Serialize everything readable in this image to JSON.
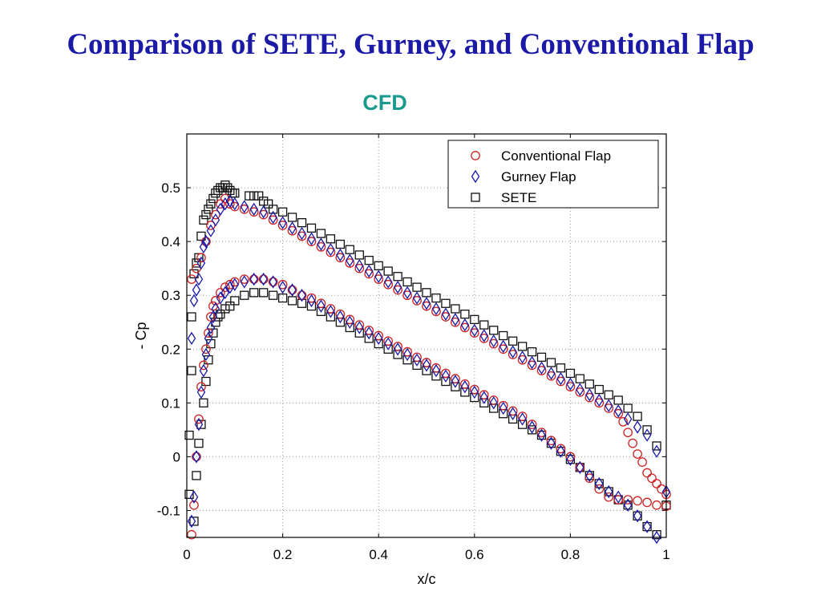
{
  "slide": {
    "title": "Comparison of SETE, Gurney, and Conventional Flap",
    "subtitle": "CFD"
  },
  "colors": {
    "title": "#1a1aa6",
    "subtitle": "#1a9a8e",
    "conventional_flap": "#cc2222",
    "gurney_flap": "#1a1aa8",
    "sete": "#111111"
  },
  "chart_data": {
    "type": "scatter",
    "title": "",
    "xlabel": "x/c",
    "ylabel": "- Cp",
    "xlim": [
      0,
      1
    ],
    "ylim": [
      -0.15,
      0.6
    ],
    "xticks": [
      "0",
      "0.2",
      "0.4",
      "0.6",
      "0.8",
      "1"
    ],
    "yticks": [
      "-0.1",
      "0",
      "0.1",
      "0.2",
      "0.3",
      "0.4",
      "0.5"
    ],
    "grid": true,
    "legend_position": "top-right",
    "series": [
      {
        "name": "Conventional Flap",
        "marker": "circle",
        "color": "#cc2222",
        "upper": {
          "x": [
            0.01,
            0.02,
            0.03,
            0.04,
            0.05,
            0.06,
            0.07,
            0.08,
            0.09,
            0.1,
            0.12,
            0.14,
            0.16,
            0.18,
            0.2,
            0.22,
            0.24,
            0.26,
            0.28,
            0.3,
            0.32,
            0.34,
            0.36,
            0.38,
            0.4,
            0.42,
            0.44,
            0.46,
            0.48,
            0.5,
            0.52,
            0.54,
            0.56,
            0.58,
            0.6,
            0.62,
            0.64,
            0.66,
            0.68,
            0.7,
            0.72,
            0.74,
            0.76,
            0.78,
            0.8,
            0.82,
            0.84,
            0.86,
            0.88,
            0.9,
            0.91,
            0.92,
            0.93,
            0.94,
            0.95,
            0.96,
            0.97,
            0.98,
            0.99,
            1.0
          ],
          "y": [
            0.33,
            0.35,
            0.37,
            0.4,
            0.43,
            0.45,
            0.47,
            0.48,
            0.47,
            0.465,
            0.46,
            0.455,
            0.45,
            0.44,
            0.43,
            0.42,
            0.41,
            0.4,
            0.39,
            0.38,
            0.37,
            0.36,
            0.35,
            0.34,
            0.33,
            0.32,
            0.31,
            0.3,
            0.29,
            0.28,
            0.27,
            0.26,
            0.25,
            0.24,
            0.23,
            0.22,
            0.21,
            0.2,
            0.19,
            0.18,
            0.17,
            0.16,
            0.15,
            0.14,
            0.13,
            0.12,
            0.11,
            0.1,
            0.09,
            0.08,
            0.065,
            0.045,
            0.025,
            0.005,
            -0.01,
            -0.03,
            -0.04,
            -0.05,
            -0.06,
            -0.07
          ]
        },
        "lower": {
          "x": [
            0.01,
            0.015,
            0.02,
            0.025,
            0.03,
            0.035,
            0.04,
            0.045,
            0.05,
            0.055,
            0.06,
            0.07,
            0.08,
            0.09,
            0.1,
            0.12,
            0.14,
            0.16,
            0.18,
            0.2,
            0.22,
            0.24,
            0.26,
            0.28,
            0.3,
            0.32,
            0.34,
            0.36,
            0.38,
            0.4,
            0.42,
            0.44,
            0.46,
            0.48,
            0.5,
            0.52,
            0.54,
            0.56,
            0.58,
            0.6,
            0.62,
            0.64,
            0.66,
            0.68,
            0.7,
            0.72,
            0.74,
            0.76,
            0.78,
            0.8,
            0.82,
            0.84,
            0.86,
            0.88,
            0.9,
            0.92,
            0.94,
            0.96,
            0.98,
            1.0
          ],
          "y": [
            -0.145,
            -0.09,
            0.0,
            0.07,
            0.13,
            0.17,
            0.2,
            0.23,
            0.26,
            0.28,
            0.29,
            0.305,
            0.315,
            0.32,
            0.325,
            0.33,
            0.33,
            0.33,
            0.325,
            0.32,
            0.31,
            0.3,
            0.295,
            0.285,
            0.275,
            0.265,
            0.255,
            0.245,
            0.235,
            0.225,
            0.215,
            0.205,
            0.195,
            0.185,
            0.175,
            0.165,
            0.155,
            0.145,
            0.135,
            0.125,
            0.115,
            0.105,
            0.095,
            0.085,
            0.075,
            0.06,
            0.045,
            0.03,
            0.015,
            0.0,
            -0.02,
            -0.04,
            -0.06,
            -0.075,
            -0.08,
            -0.08,
            -0.082,
            -0.085,
            -0.09,
            -0.092
          ]
        }
      },
      {
        "name": "Gurney Flap",
        "marker": "diamond",
        "color": "#1a1aa8",
        "upper": {
          "x": [
            0.01,
            0.015,
            0.02,
            0.025,
            0.03,
            0.035,
            0.04,
            0.05,
            0.06,
            0.07,
            0.08,
            0.09,
            0.1,
            0.12,
            0.14,
            0.16,
            0.18,
            0.2,
            0.22,
            0.24,
            0.26,
            0.28,
            0.3,
            0.32,
            0.34,
            0.36,
            0.38,
            0.4,
            0.42,
            0.44,
            0.46,
            0.48,
            0.5,
            0.52,
            0.54,
            0.56,
            0.58,
            0.6,
            0.62,
            0.64,
            0.66,
            0.68,
            0.7,
            0.72,
            0.74,
            0.76,
            0.78,
            0.8,
            0.82,
            0.84,
            0.86,
            0.88,
            0.9,
            0.92,
            0.94,
            0.96,
            0.98,
            1.0
          ],
          "y": [
            0.22,
            0.29,
            0.31,
            0.33,
            0.36,
            0.39,
            0.4,
            0.42,
            0.44,
            0.46,
            0.47,
            0.475,
            0.47,
            0.465,
            0.46,
            0.455,
            0.445,
            0.435,
            0.425,
            0.415,
            0.405,
            0.395,
            0.385,
            0.375,
            0.365,
            0.355,
            0.345,
            0.335,
            0.325,
            0.315,
            0.305,
            0.295,
            0.285,
            0.275,
            0.265,
            0.255,
            0.245,
            0.235,
            0.225,
            0.215,
            0.205,
            0.195,
            0.185,
            0.175,
            0.165,
            0.155,
            0.145,
            0.135,
            0.125,
            0.115,
            0.105,
            0.095,
            0.085,
            0.07,
            0.055,
            0.04,
            0.01,
            -0.065
          ]
        },
        "lower": {
          "x": [
            0.01,
            0.015,
            0.02,
            0.025,
            0.03,
            0.035,
            0.04,
            0.045,
            0.05,
            0.055,
            0.06,
            0.07,
            0.08,
            0.09,
            0.1,
            0.12,
            0.14,
            0.16,
            0.18,
            0.2,
            0.22,
            0.24,
            0.26,
            0.28,
            0.3,
            0.32,
            0.34,
            0.36,
            0.38,
            0.4,
            0.42,
            0.44,
            0.46,
            0.48,
            0.5,
            0.52,
            0.54,
            0.56,
            0.58,
            0.6,
            0.62,
            0.64,
            0.66,
            0.68,
            0.7,
            0.72,
            0.74,
            0.76,
            0.78,
            0.8,
            0.82,
            0.84,
            0.86,
            0.88,
            0.9,
            0.92,
            0.94,
            0.96,
            0.98
          ],
          "y": [
            -0.12,
            -0.075,
            0.0,
            0.06,
            0.12,
            0.16,
            0.19,
            0.22,
            0.24,
            0.26,
            0.275,
            0.295,
            0.305,
            0.315,
            0.32,
            0.325,
            0.33,
            0.33,
            0.325,
            0.315,
            0.31,
            0.3,
            0.29,
            0.28,
            0.27,
            0.26,
            0.25,
            0.24,
            0.23,
            0.22,
            0.21,
            0.2,
            0.19,
            0.18,
            0.17,
            0.16,
            0.15,
            0.14,
            0.13,
            0.12,
            0.11,
            0.1,
            0.09,
            0.08,
            0.07,
            0.055,
            0.04,
            0.025,
            0.01,
            -0.005,
            -0.02,
            -0.035,
            -0.05,
            -0.065,
            -0.075,
            -0.09,
            -0.11,
            -0.13,
            -0.15
          ]
        }
      },
      {
        "name": "SETE",
        "marker": "square",
        "color": "#111111",
        "upper": {
          "x": [
            0.005,
            0.01,
            0.015,
            0.02,
            0.025,
            0.03,
            0.035,
            0.04,
            0.045,
            0.05,
            0.055,
            0.06,
            0.065,
            0.07,
            0.075,
            0.08,
            0.085,
            0.09,
            0.095,
            0.1,
            0.13,
            0.14,
            0.15,
            0.16,
            0.17,
            0.18,
            0.2,
            0.22,
            0.24,
            0.26,
            0.28,
            0.3,
            0.32,
            0.34,
            0.36,
            0.38,
            0.4,
            0.42,
            0.44,
            0.46,
            0.48,
            0.5,
            0.52,
            0.54,
            0.56,
            0.58,
            0.6,
            0.62,
            0.64,
            0.66,
            0.68,
            0.7,
            0.72,
            0.74,
            0.76,
            0.78,
            0.8,
            0.82,
            0.84,
            0.86,
            0.88,
            0.9,
            0.92,
            0.94,
            0.96,
            0.98,
            1.0
          ],
          "y": [
            0.04,
            0.26,
            0.34,
            0.36,
            0.37,
            0.41,
            0.44,
            0.45,
            0.46,
            0.47,
            0.48,
            0.49,
            0.495,
            0.5,
            0.5,
            0.505,
            0.5,
            0.495,
            0.49,
            0.49,
            0.485,
            0.485,
            0.485,
            0.475,
            0.47,
            0.46,
            0.455,
            0.445,
            0.435,
            0.425,
            0.415,
            0.405,
            0.395,
            0.385,
            0.375,
            0.365,
            0.355,
            0.345,
            0.335,
            0.325,
            0.315,
            0.305,
            0.295,
            0.285,
            0.275,
            0.265,
            0.255,
            0.245,
            0.235,
            0.225,
            0.215,
            0.205,
            0.195,
            0.185,
            0.175,
            0.165,
            0.155,
            0.145,
            0.135,
            0.125,
            0.115,
            0.105,
            0.09,
            0.075,
            0.05,
            0.02,
            -0.09
          ]
        },
        "lower": {
          "x": [
            0.005,
            0.01,
            0.015,
            0.02,
            0.025,
            0.03,
            0.035,
            0.04,
            0.045,
            0.05,
            0.055,
            0.06,
            0.065,
            0.07,
            0.08,
            0.09,
            0.1,
            0.12,
            0.14,
            0.16,
            0.18,
            0.2,
            0.22,
            0.24,
            0.26,
            0.28,
            0.3,
            0.32,
            0.34,
            0.36,
            0.38,
            0.4,
            0.42,
            0.44,
            0.46,
            0.48,
            0.5,
            0.52,
            0.54,
            0.56,
            0.58,
            0.6,
            0.62,
            0.64,
            0.66,
            0.68,
            0.7,
            0.72,
            0.74,
            0.76,
            0.78,
            0.8,
            0.82,
            0.84,
            0.86,
            0.88,
            0.9,
            0.92,
            0.94,
            0.96,
            0.98
          ],
          "y": [
            -0.07,
            0.16,
            -0.12,
            -0.035,
            0.025,
            0.06,
            0.1,
            0.14,
            0.18,
            0.21,
            0.23,
            0.25,
            0.26,
            0.265,
            0.275,
            0.28,
            0.29,
            0.3,
            0.305,
            0.305,
            0.3,
            0.295,
            0.29,
            0.285,
            0.28,
            0.27,
            0.26,
            0.25,
            0.24,
            0.23,
            0.22,
            0.21,
            0.2,
            0.19,
            0.18,
            0.17,
            0.16,
            0.15,
            0.14,
            0.13,
            0.12,
            0.11,
            0.1,
            0.09,
            0.08,
            0.07,
            0.06,
            0.05,
            0.04,
            0.025,
            0.01,
            -0.005,
            -0.02,
            -0.035,
            -0.05,
            -0.065,
            -0.08,
            -0.09,
            -0.11,
            -0.13,
            -0.145
          ]
        }
      }
    ]
  }
}
